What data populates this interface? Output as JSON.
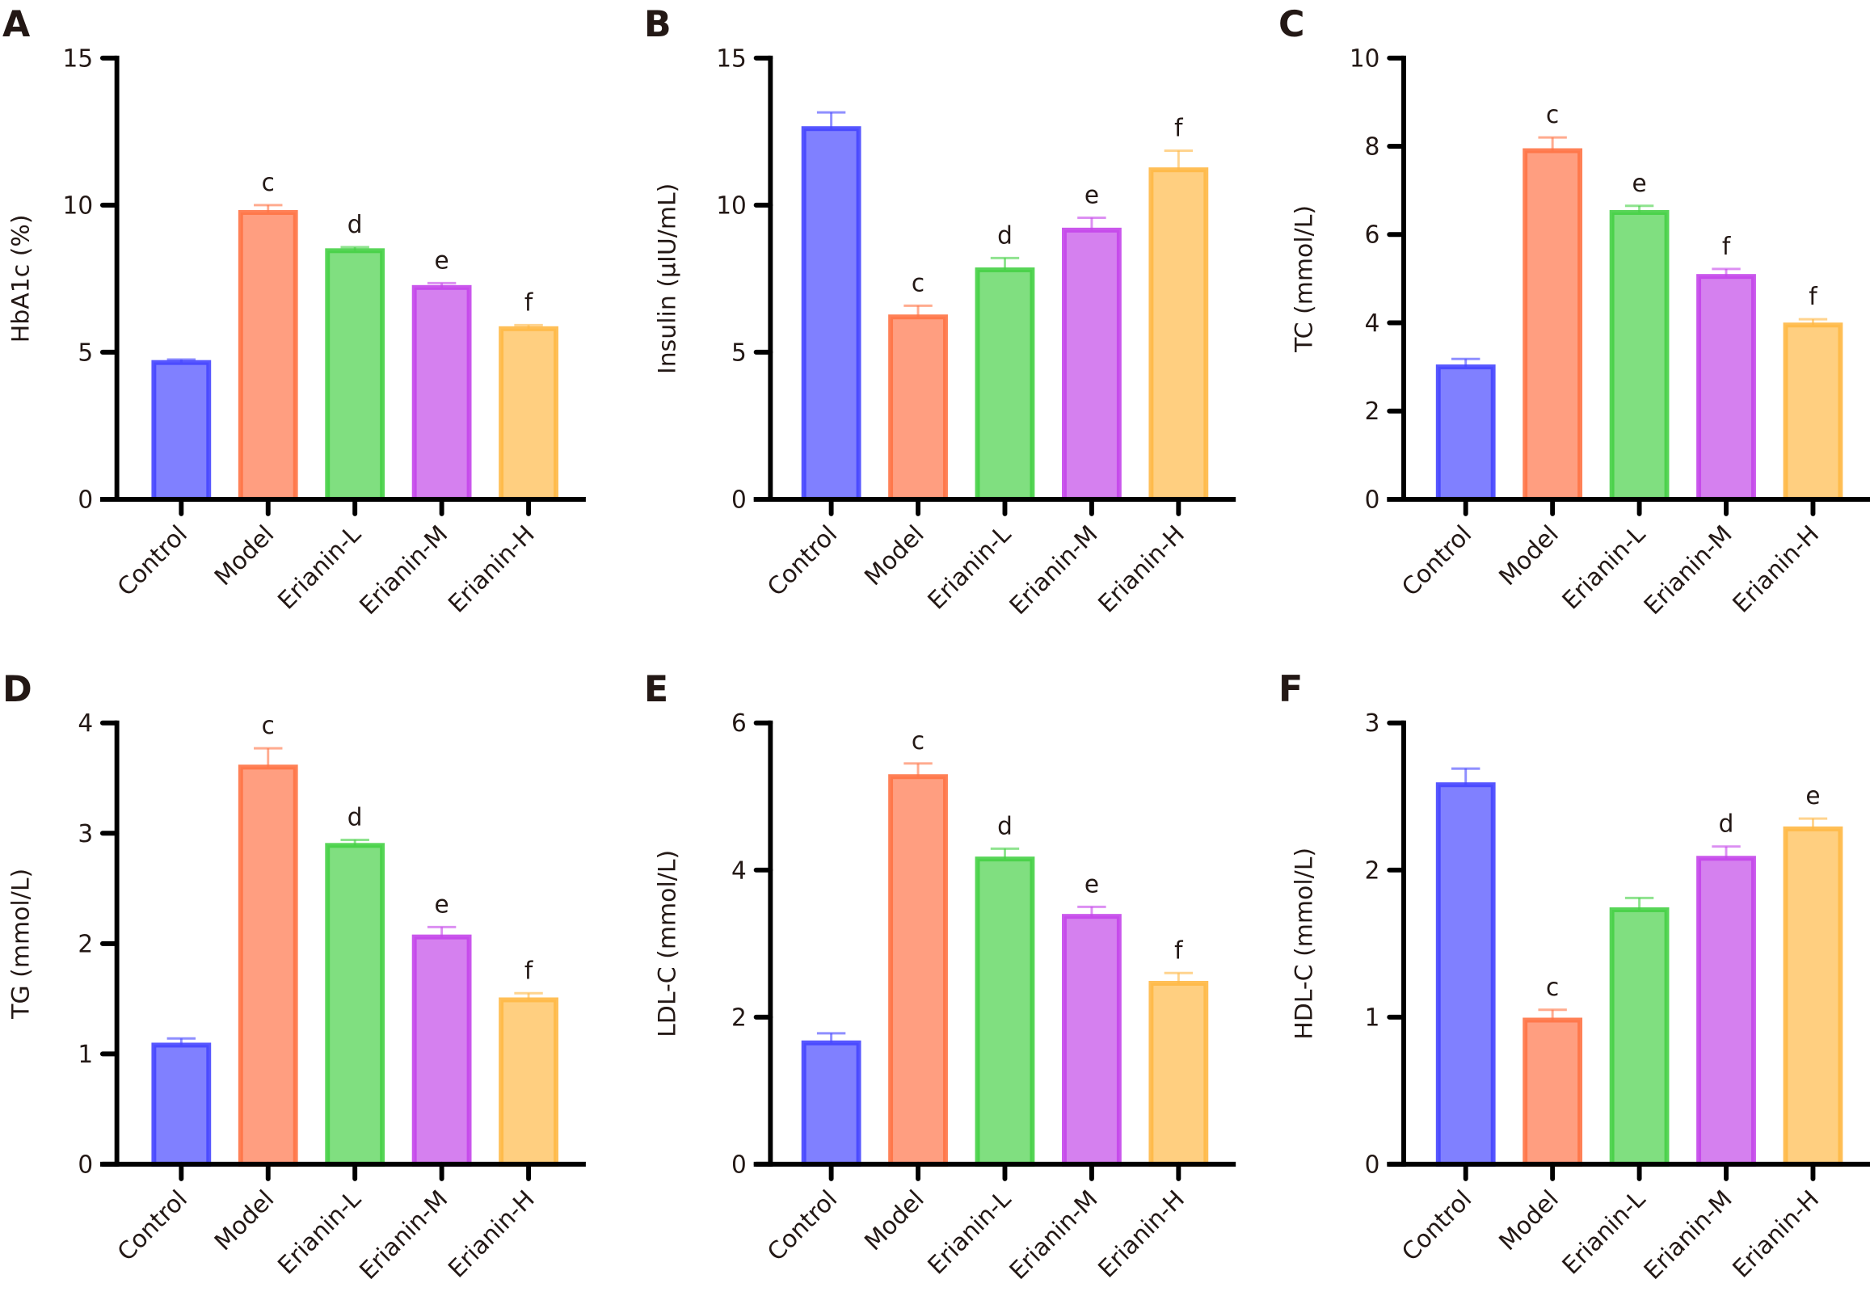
{
  "figure": {
    "colors": {
      "Control": {
        "fill": "#8080ff",
        "stroke": "#4545ff"
      },
      "Model": {
        "fill": "#ff9e80",
        "stroke": "#ff7345"
      },
      "Erianin-L": {
        "fill": "#80df80",
        "stroke": "#45d045"
      },
      "Erianin-M": {
        "fill": "#d580ef",
        "stroke": "#c445ea"
      },
      "Erianin-H": {
        "fill": "#ffcf80",
        "stroke": "#ffb845"
      }
    }
  },
  "chart_data": [
    {
      "panel": "A",
      "type": "bar",
      "title": "",
      "xlabel": "",
      "ylabel": "HbA1c (%)",
      "categories": [
        "Control",
        "Model",
        "Erianin-L",
        "Erianin-M",
        "Erianin-H"
      ],
      "values": [
        4.65,
        9.75,
        8.45,
        7.2,
        5.8
      ],
      "errors": [
        0.1,
        0.25,
        0.12,
        0.15,
        0.12
      ],
      "significance": [
        "",
        "c",
        "d",
        "e",
        "f"
      ],
      "ylim": [
        0,
        15
      ],
      "yticks": [
        0,
        5,
        10,
        15
      ],
      "grid": false
    },
    {
      "panel": "B",
      "type": "bar",
      "title": "",
      "xlabel": "",
      "ylabel": "Insulin (µIU/mL)",
      "categories": [
        "Control",
        "Model",
        "Erianin-L",
        "Erianin-M",
        "Erianin-H"
      ],
      "values": [
        12.6,
        6.2,
        7.8,
        9.15,
        11.2
      ],
      "errors": [
        0.55,
        0.38,
        0.4,
        0.42,
        0.65
      ],
      "significance": [
        "",
        "c",
        "d",
        "e",
        "f"
      ],
      "ylim": [
        0,
        15
      ],
      "yticks": [
        0,
        5,
        10,
        15
      ],
      "grid": false
    },
    {
      "panel": "C",
      "type": "bar",
      "title": "",
      "xlabel": "",
      "ylabel": "TC (mmol/L)",
      "categories": [
        "Control",
        "Model",
        "Erianin-L",
        "Erianin-M",
        "Erianin-H"
      ],
      "values": [
        3.0,
        7.9,
        6.5,
        5.05,
        3.95
      ],
      "errors": [
        0.18,
        0.3,
        0.15,
        0.17,
        0.13
      ],
      "significance": [
        "",
        "c",
        "e",
        "f",
        "f"
      ],
      "ylim": [
        0,
        10
      ],
      "yticks": [
        0,
        2,
        4,
        6,
        8,
        10
      ],
      "grid": false
    },
    {
      "panel": "D",
      "type": "bar",
      "title": "",
      "xlabel": "",
      "ylabel": "TG (mmol/L)",
      "categories": [
        "Control",
        "Model",
        "Erianin-L",
        "Erianin-M",
        "Erianin-H"
      ],
      "values": [
        1.08,
        3.6,
        2.89,
        2.06,
        1.49
      ],
      "errors": [
        0.06,
        0.17,
        0.05,
        0.09,
        0.06
      ],
      "significance": [
        "",
        "c",
        "d",
        "e",
        "f"
      ],
      "ylim": [
        0,
        4
      ],
      "yticks": [
        0,
        1,
        2,
        3,
        4
      ],
      "grid": false
    },
    {
      "panel": "E",
      "type": "bar",
      "title": "",
      "xlabel": "",
      "ylabel": "LDL-C (mmol/L)",
      "categories": [
        "Control",
        "Model",
        "Erianin-L",
        "Erianin-M",
        "Erianin-H"
      ],
      "values": [
        1.65,
        5.27,
        4.15,
        3.37,
        2.46
      ],
      "errors": [
        0.13,
        0.18,
        0.14,
        0.13,
        0.14
      ],
      "significance": [
        "",
        "c",
        "d",
        "e",
        "f"
      ],
      "ylim": [
        0,
        6
      ],
      "yticks": [
        0,
        2,
        4,
        6
      ],
      "grid": false
    },
    {
      "panel": "F",
      "type": "bar",
      "title": "",
      "xlabel": "",
      "ylabel": "HDL-C (mmol/L)",
      "categories": [
        "Control",
        "Model",
        "Erianin-L",
        "Erianin-M",
        "Erianin-H"
      ],
      "values": [
        2.58,
        0.98,
        1.73,
        2.08,
        2.28
      ],
      "errors": [
        0.11,
        0.07,
        0.08,
        0.08,
        0.07
      ],
      "significance": [
        "",
        "c",
        "",
        "d",
        "e"
      ],
      "ylim": [
        0,
        3
      ],
      "yticks": [
        0,
        1,
        2,
        3
      ],
      "grid": false
    }
  ]
}
